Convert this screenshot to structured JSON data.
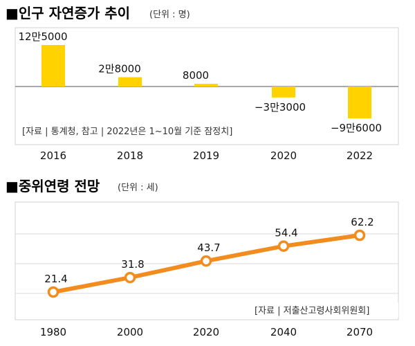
{
  "charts": {
    "population": {
      "title": "■인구 자연증가 추이",
      "unit_note": "(단위 : 명)",
      "source": "[자료 | 통계청, 참고 | 2022년은 1~10월 기준 잠정치]"
    },
    "median_age": {
      "title": "■중위연령 전망",
      "unit_note": "(단위 : 세)",
      "source": "[자료 | 저출산고령사회위원회]"
    }
  },
  "chart_data": [
    {
      "type": "bar",
      "title": "■인구 자연증가 추이",
      "unit": "명",
      "categories": [
        "2016",
        "2018",
        "2019",
        "2020",
        "2022"
      ],
      "values": [
        125000,
        28000,
        8000,
        -33000,
        -96000
      ],
      "data_labels": [
        "12만5000",
        "2만8000",
        "8000",
        "−3만3000",
        "−9만6000"
      ],
      "ylim": [
        -130000,
        170000
      ],
      "grid": false,
      "bar_color": "#FFD200"
    },
    {
      "type": "line",
      "title": "■중위연령 전망",
      "unit": "세",
      "categories": [
        "1980",
        "2000",
        "2020",
        "2040",
        "2070"
      ],
      "values": [
        21.4,
        31.8,
        43.7,
        54.4,
        62.2
      ],
      "data_labels": [
        "21.4",
        "31.8",
        "43.7",
        "54.4",
        "62.2"
      ],
      "ylim": [
        10,
        72
      ],
      "grid": true,
      "line_color": "#F28C1E"
    }
  ]
}
